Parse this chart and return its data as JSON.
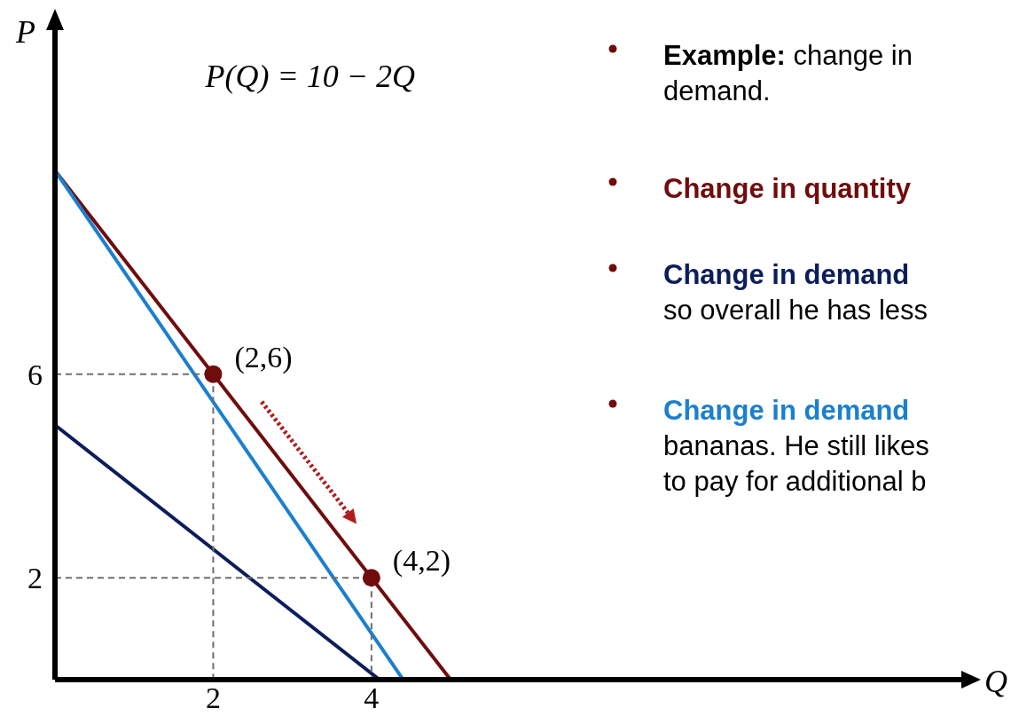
{
  "chart_data": {
    "type": "line",
    "xlabel": "Q",
    "ylabel": "P",
    "xlim": [
      0,
      11.5
    ],
    "xticks": [
      2,
      4
    ],
    "ylim": [
      0,
      13
    ],
    "yticks": [
      2,
      6
    ],
    "grid": false,
    "series": [
      {
        "color": "#700c0c",
        "x": [
          0,
          5
        ],
        "values": [
          10,
          0
        ]
      },
      {
        "color": "#1b7fd0",
        "x": [
          0,
          4.4
        ],
        "values": [
          10,
          0
        ]
      },
      {
        "color": "#0b1e5b",
        "x": [
          0,
          4.1
        ],
        "values": [
          5,
          0
        ]
      },
      {
        "color": "#6e6e6e",
        "line_style": "dashed",
        "x": [
          0,
          2,
          2
        ],
        "values": [
          6,
          6,
          0
        ]
      },
      {
        "color": "#6e6e6e",
        "line_style": "dashed",
        "x": [
          0,
          4,
          4
        ],
        "values": [
          2,
          2,
          0
        ]
      },
      {
        "type": "scatter",
        "color": "#700c0c",
        "marker": "circle",
        "x": [
          2,
          4
        ],
        "values": [
          6,
          2
        ]
      }
    ],
    "annotations": [
      "P(Q) = 10 − 2Q",
      {
        "text": "(2,6)",
        "x": 2,
        "y": 6
      },
      {
        "text": "(4,2)",
        "x": 4,
        "y": 2
      },
      "Example: change in",
      "demand.",
      "Change in quantity",
      "Change in demand",
      "so overall he has less",
      "Change in demand",
      "bananas. He still likes",
      "to pay for additional b"
    ]
  }
}
